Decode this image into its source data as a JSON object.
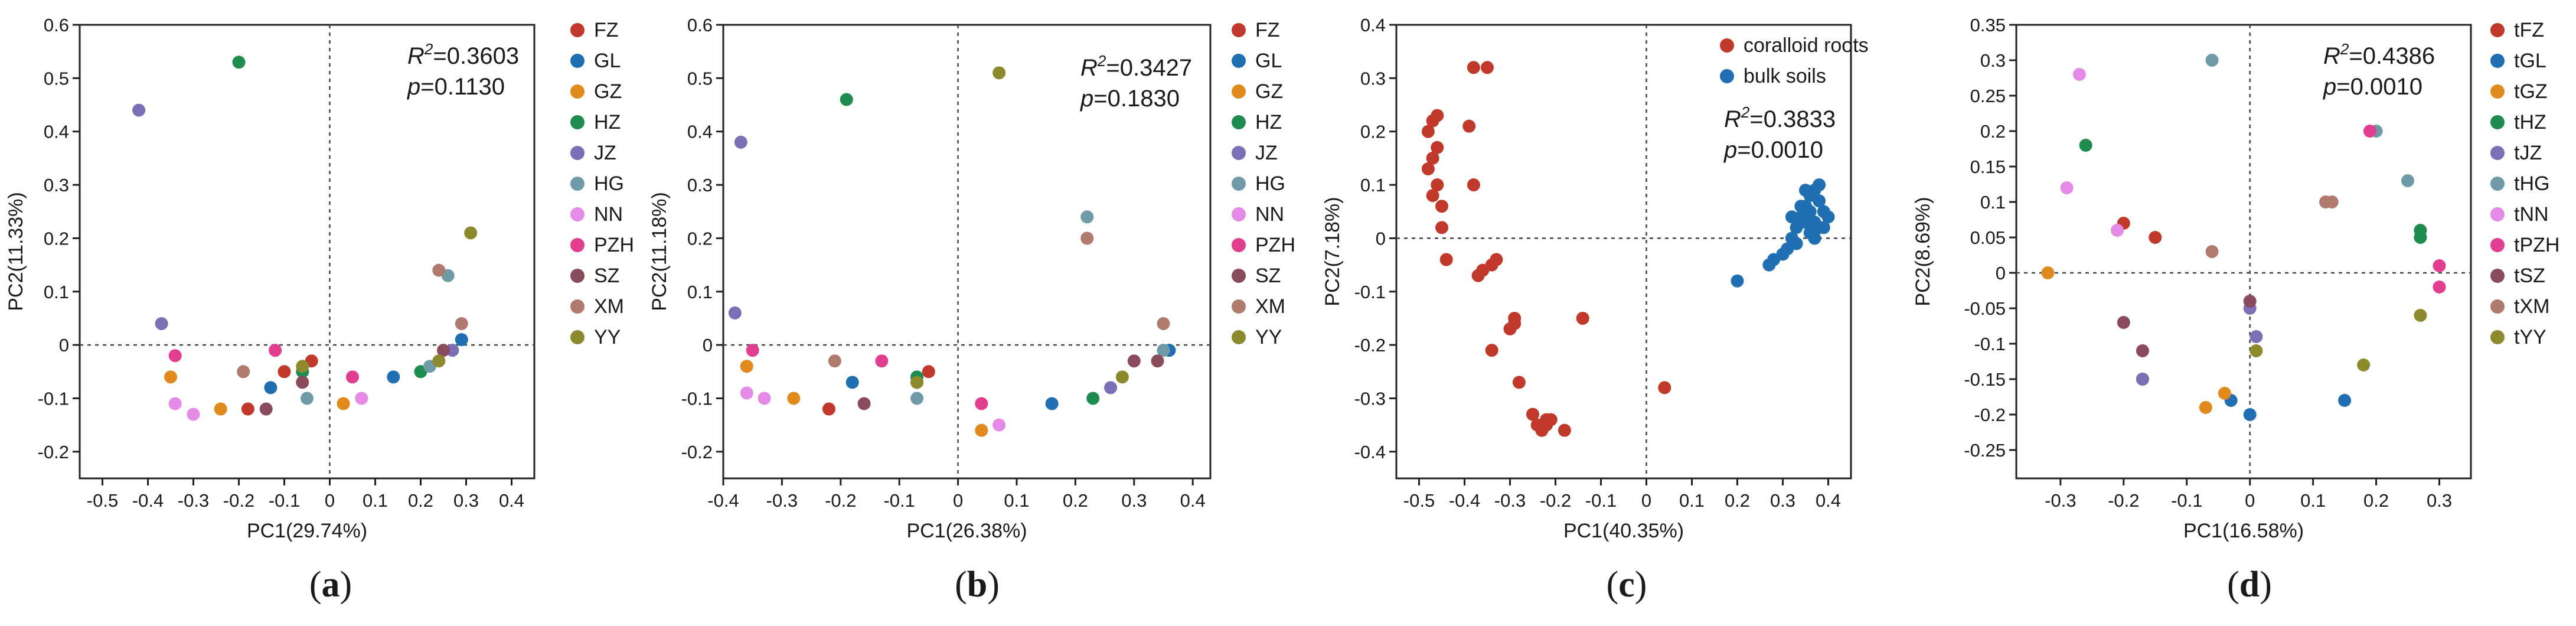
{
  "chart_data": [
    {
      "type": "scatter",
      "panel_label": "a",
      "xlabel": "PC1(29.74%)",
      "ylabel": "PC2(11.33%)",
      "xlim": [
        -0.55,
        0.45
      ],
      "ylim": [
        -0.25,
        0.6
      ],
      "xticks": [
        -0.5,
        -0.4,
        -0.3,
        -0.2,
        -0.1,
        0,
        0.1,
        0.2,
        0.3,
        0.4
      ],
      "xtick_labels": [
        "-0.5",
        "-0.4",
        "-0.3",
        "-0.2",
        "-0.1",
        "0",
        "0.1",
        "0.2",
        "0.3",
        "0.4"
      ],
      "yticks": [
        -0.2,
        -0.1,
        0,
        0.1,
        0.2,
        0.3,
        0.4,
        0.5,
        0.6
      ],
      "ytick_labels": [
        "-0.2",
        "-0.1",
        "0",
        "0.1",
        "0.2",
        "0.3",
        "0.4",
        "0.5",
        "0.6"
      ],
      "stats": {
        "r2_label": "R",
        "r2_sup": "2",
        "r2_value": "=0.3603",
        "p_label": "p",
        "p_value": "=0.1130"
      },
      "legend_position": "right",
      "series": [
        {
          "name": "FZ",
          "color": "#c0392b",
          "points": [
            [
              -0.18,
              -0.12
            ],
            [
              -0.04,
              -0.03
            ],
            [
              -0.1,
              -0.05
            ]
          ]
        },
        {
          "name": "GL",
          "color": "#1f6fb2",
          "points": [
            [
              -0.13,
              -0.08
            ],
            [
              0.14,
              -0.06
            ],
            [
              0.29,
              0.01
            ]
          ]
        },
        {
          "name": "GZ",
          "color": "#e08a1e",
          "points": [
            [
              -0.35,
              -0.06
            ],
            [
              -0.24,
              -0.12
            ],
            [
              0.03,
              -0.11
            ]
          ]
        },
        {
          "name": "HZ",
          "color": "#1e8b4f",
          "points": [
            [
              -0.2,
              0.53
            ],
            [
              0.2,
              -0.05
            ],
            [
              -0.06,
              -0.05
            ]
          ]
        },
        {
          "name": "JZ",
          "color": "#7b6fb6",
          "points": [
            [
              -0.42,
              0.44
            ],
            [
              -0.37,
              0.04
            ],
            [
              0.27,
              -0.01
            ]
          ]
        },
        {
          "name": "HG",
          "color": "#6f9aa8",
          "points": [
            [
              0.26,
              0.13
            ],
            [
              -0.05,
              -0.1
            ],
            [
              0.22,
              -0.04
            ]
          ]
        },
        {
          "name": "NN",
          "color": "#e58ae6",
          "points": [
            [
              -0.34,
              -0.11
            ],
            [
              -0.3,
              -0.13
            ],
            [
              0.07,
              -0.1
            ]
          ]
        },
        {
          "name": "PZH",
          "color": "#e23e8f",
          "points": [
            [
              -0.34,
              -0.02
            ],
            [
              -0.12,
              -0.01
            ],
            [
              0.05,
              -0.06
            ]
          ]
        },
        {
          "name": "SZ",
          "color": "#8a4b5c",
          "points": [
            [
              -0.14,
              -0.12
            ],
            [
              -0.06,
              -0.07
            ],
            [
              0.25,
              -0.01
            ]
          ]
        },
        {
          "name": "XM",
          "color": "#b07a6e",
          "points": [
            [
              0.24,
              0.14
            ],
            [
              -0.19,
              -0.05
            ],
            [
              0.29,
              0.04
            ]
          ]
        },
        {
          "name": "YY",
          "color": "#8d8a2e",
          "points": [
            [
              0.31,
              0.21
            ],
            [
              0.24,
              -0.03
            ],
            [
              -0.06,
              -0.04
            ]
          ]
        }
      ]
    },
    {
      "type": "scatter",
      "panel_label": "b",
      "xlabel": "PC1(26.38%)",
      "ylabel": "PC2(11.18%)",
      "xlim": [
        -0.4,
        0.43
      ],
      "ylim": [
        -0.25,
        0.6
      ],
      "xticks": [
        -0.4,
        -0.3,
        -0.2,
        -0.1,
        0,
        0.1,
        0.2,
        0.3,
        0.4
      ],
      "xtick_labels": [
        "-0.4",
        "-0.3",
        "-0.2",
        "-0.1",
        "0",
        "0.1",
        "0.2",
        "0.3",
        "0.4"
      ],
      "yticks": [
        -0.2,
        -0.1,
        0,
        0.1,
        0.2,
        0.3,
        0.4,
        0.5,
        0.6
      ],
      "ytick_labels": [
        "-0.2",
        "-0.1",
        "0",
        "0.1",
        "0.2",
        "0.3",
        "0.4",
        "0.5",
        "0.6"
      ],
      "stats": {
        "r2_label": "R",
        "r2_sup": "2",
        "r2_value": "=0.3427",
        "p_label": "p",
        "p_value": "=0.1830"
      },
      "legend_position": "right",
      "series": [
        {
          "name": "FZ",
          "color": "#c0392b",
          "points": [
            [
              -0.22,
              -0.12
            ],
            [
              -0.05,
              -0.05
            ],
            [
              -0.07,
              -0.07
            ]
          ]
        },
        {
          "name": "GL",
          "color": "#1f6fb2",
          "points": [
            [
              -0.18,
              -0.07
            ],
            [
              0.16,
              -0.11
            ],
            [
              0.36,
              -0.01
            ]
          ]
        },
        {
          "name": "GZ",
          "color": "#e08a1e",
          "points": [
            [
              -0.36,
              -0.04
            ],
            [
              -0.28,
              -0.1
            ],
            [
              0.04,
              -0.16
            ]
          ]
        },
        {
          "name": "HZ",
          "color": "#1e8b4f",
          "points": [
            [
              -0.19,
              0.46
            ],
            [
              0.23,
              -0.1
            ],
            [
              -0.07,
              -0.06
            ]
          ]
        },
        {
          "name": "JZ",
          "color": "#7b6fb6",
          "points": [
            [
              -0.37,
              0.38
            ],
            [
              -0.38,
              0.06
            ],
            [
              0.26,
              -0.08
            ]
          ]
        },
        {
          "name": "HG",
          "color": "#6f9aa8",
          "points": [
            [
              0.22,
              0.24
            ],
            [
              -0.07,
              -0.1
            ],
            [
              0.35,
              -0.01
            ]
          ]
        },
        {
          "name": "NN",
          "color": "#e58ae6",
          "points": [
            [
              -0.36,
              -0.09
            ],
            [
              -0.33,
              -0.1
            ],
            [
              0.07,
              -0.15
            ]
          ]
        },
        {
          "name": "PZH",
          "color": "#e23e8f",
          "points": [
            [
              -0.35,
              -0.01
            ],
            [
              -0.13,
              -0.03
            ],
            [
              0.04,
              -0.11
            ]
          ]
        },
        {
          "name": "SZ",
          "color": "#8a4b5c",
          "points": [
            [
              -0.16,
              -0.11
            ],
            [
              0.3,
              -0.03
            ],
            [
              0.34,
              -0.03
            ]
          ]
        },
        {
          "name": "XM",
          "color": "#b07a6e",
          "points": [
            [
              0.22,
              0.2
            ],
            [
              -0.21,
              -0.03
            ],
            [
              0.35,
              0.04
            ]
          ]
        },
        {
          "name": "YY",
          "color": "#8d8a2e",
          "points": [
            [
              0.07,
              0.51
            ],
            [
              0.28,
              -0.06
            ],
            [
              -0.07,
              -0.07
            ]
          ]
        }
      ]
    },
    {
      "type": "scatter",
      "panel_label": "c",
      "xlabel": "PC1(40.35%)",
      "ylabel": "PC2(7.18%)",
      "xlim": [
        -0.55,
        0.45
      ],
      "ylim": [
        -0.45,
        0.4
      ],
      "xticks": [
        -0.5,
        -0.4,
        -0.3,
        -0.2,
        -0.1,
        0,
        0.1,
        0.2,
        0.3,
        0.4
      ],
      "xtick_labels": [
        "-0.5",
        "-0.4",
        "-0.3",
        "-0.2",
        "-0.1",
        "0",
        "0.1",
        "0.2",
        "0.3",
        "0.4"
      ],
      "yticks": [
        -0.4,
        -0.3,
        -0.2,
        -0.1,
        0,
        0.1,
        0.2,
        0.3,
        0.4
      ],
      "ytick_labels": [
        "-0.4",
        "-0.3",
        "-0.2",
        "-0.1",
        "0",
        "0.1",
        "0.2",
        "0.3",
        "0.4"
      ],
      "stats": {
        "r2_label": "R",
        "r2_sup": "2",
        "r2_value": "=0.3833",
        "p_label": "p",
        "p_value": "=0.0010"
      },
      "legend_position": "top-right (inside)",
      "series": [
        {
          "name": "coralloid roots",
          "color": "#c0392b",
          "points": [
            [
              -0.47,
              0.22
            ],
            [
              -0.46,
              0.23
            ],
            [
              -0.48,
              0.2
            ],
            [
              -0.47,
              0.15
            ],
            [
              -0.46,
              0.17
            ],
            [
              -0.48,
              0.13
            ],
            [
              -0.46,
              0.1
            ],
            [
              -0.47,
              0.08
            ],
            [
              -0.45,
              0.06
            ],
            [
              -0.45,
              0.02
            ],
            [
              -0.44,
              -0.04
            ],
            [
              -0.38,
              0.32
            ],
            [
              -0.35,
              0.32
            ],
            [
              -0.39,
              0.21
            ],
            [
              -0.38,
              0.1
            ],
            [
              -0.37,
              -0.07
            ],
            [
              -0.36,
              -0.06
            ],
            [
              -0.33,
              -0.04
            ],
            [
              -0.34,
              -0.05
            ],
            [
              -0.34,
              -0.21
            ],
            [
              -0.29,
              -0.15
            ],
            [
              -0.29,
              -0.16
            ],
            [
              -0.3,
              -0.17
            ],
            [
              -0.28,
              -0.27
            ],
            [
              -0.25,
              -0.33
            ],
            [
              -0.24,
              -0.35
            ],
            [
              -0.23,
              -0.36
            ],
            [
              -0.22,
              -0.34
            ],
            [
              -0.21,
              -0.34
            ],
            [
              -0.18,
              -0.36
            ],
            [
              -0.14,
              -0.15
            ],
            [
              0.04,
              -0.28
            ],
            [
              -0.22,
              -0.35
            ]
          ]
        },
        {
          "name": "bulk soils",
          "color": "#1f6fb2",
          "points": [
            [
              0.2,
              -0.08
            ],
            [
              0.27,
              -0.05
            ],
            [
              0.28,
              -0.04
            ],
            [
              0.3,
              -0.03
            ],
            [
              0.31,
              -0.02
            ],
            [
              0.32,
              0.0
            ],
            [
              0.33,
              0.02
            ],
            [
              0.34,
              0.04
            ],
            [
              0.35,
              0.06
            ],
            [
              0.36,
              0.08
            ],
            [
              0.37,
              0.09
            ],
            [
              0.38,
              0.07
            ],
            [
              0.39,
              0.05
            ],
            [
              0.4,
              0.04
            ],
            [
              0.35,
              0.03
            ],
            [
              0.36,
              0.01
            ],
            [
              0.37,
              0.0
            ],
            [
              0.38,
              0.02
            ],
            [
              0.33,
              -0.01
            ],
            [
              0.34,
              0.06
            ],
            [
              0.36,
              0.05
            ],
            [
              0.37,
              0.03
            ],
            [
              0.39,
              0.02
            ],
            [
              0.35,
              0.09
            ],
            [
              0.32,
              0.04
            ],
            [
              0.38,
              0.1
            ]
          ]
        }
      ]
    },
    {
      "type": "scatter",
      "panel_label": "d",
      "xlabel": "PC1(16.58%)",
      "ylabel": "PC2(8.69%)",
      "xlim": [
        -0.37,
        0.35
      ],
      "ylim": [
        -0.29,
        0.35
      ],
      "xticks": [
        -0.3,
        -0.2,
        -0.1,
        0,
        0.1,
        0.2,
        0.3
      ],
      "xtick_labels": [
        "-0.3",
        "-0.2",
        "-0.1",
        "0",
        "0.1",
        "0.2",
        "0.3"
      ],
      "yticks": [
        -0.25,
        -0.2,
        -0.15,
        -0.1,
        -0.05,
        0,
        0.05,
        0.1,
        0.15,
        0.2,
        0.25,
        0.3,
        0.35
      ],
      "ytick_labels": [
        "-0.25",
        "-0.2",
        "-0.15",
        "-0.1",
        "-0.05",
        "0",
        "0.05",
        "0.1",
        "0.15",
        "0.2",
        "0.25",
        "0.3",
        "0.35"
      ],
      "stats": {
        "r2_label": "R",
        "r2_sup": "2",
        "r2_value": "=0.4386",
        "p_label": "p",
        "p_value": "=0.0010"
      },
      "legend_position": "right",
      "series": [
        {
          "name": "tFZ",
          "color": "#c0392b",
          "points": [
            [
              -0.2,
              0.07
            ],
            [
              -0.15,
              0.05
            ],
            [
              -0.17,
              -0.15
            ]
          ]
        },
        {
          "name": "tGL",
          "color": "#1f6fb2",
          "points": [
            [
              0.0,
              -0.2
            ],
            [
              -0.03,
              -0.18
            ],
            [
              0.15,
              -0.18
            ]
          ]
        },
        {
          "name": "tGZ",
          "color": "#e08a1e",
          "points": [
            [
              -0.32,
              0.0
            ],
            [
              -0.04,
              -0.17
            ],
            [
              -0.07,
              -0.19
            ]
          ]
        },
        {
          "name": "tHZ",
          "color": "#1e8b4f",
          "points": [
            [
              -0.26,
              0.18
            ],
            [
              0.27,
              0.06
            ],
            [
              0.27,
              0.05
            ]
          ]
        },
        {
          "name": "tJZ",
          "color": "#7b6fb6",
          "points": [
            [
              -0.17,
              -0.15
            ],
            [
              0.01,
              -0.09
            ],
            [
              0.0,
              -0.05
            ]
          ]
        },
        {
          "name": "tHG",
          "color": "#6f9aa8",
          "points": [
            [
              -0.06,
              0.3
            ],
            [
              0.2,
              0.2
            ],
            [
              0.25,
              0.13
            ]
          ]
        },
        {
          "name": "tNN",
          "color": "#e58ae6",
          "points": [
            [
              -0.27,
              0.28
            ],
            [
              -0.29,
              0.12
            ],
            [
              -0.21,
              0.06
            ]
          ]
        },
        {
          "name": "tPZH",
          "color": "#e23e8f",
          "points": [
            [
              0.19,
              0.2
            ],
            [
              0.3,
              0.01
            ],
            [
              0.3,
              -0.02
            ]
          ]
        },
        {
          "name": "tSZ",
          "color": "#8a4b5c",
          "points": [
            [
              -0.2,
              -0.07
            ],
            [
              -0.17,
              -0.11
            ],
            [
              0.0,
              -0.04
            ]
          ]
        },
        {
          "name": "tXM",
          "color": "#b07a6e",
          "points": [
            [
              0.12,
              0.1
            ],
            [
              0.13,
              0.1
            ],
            [
              -0.06,
              0.03
            ]
          ]
        },
        {
          "name": "tYY",
          "color": "#8d8a2e",
          "points": [
            [
              0.27,
              -0.06
            ],
            [
              0.18,
              -0.13
            ],
            [
              0.01,
              -0.11
            ]
          ]
        }
      ]
    }
  ]
}
